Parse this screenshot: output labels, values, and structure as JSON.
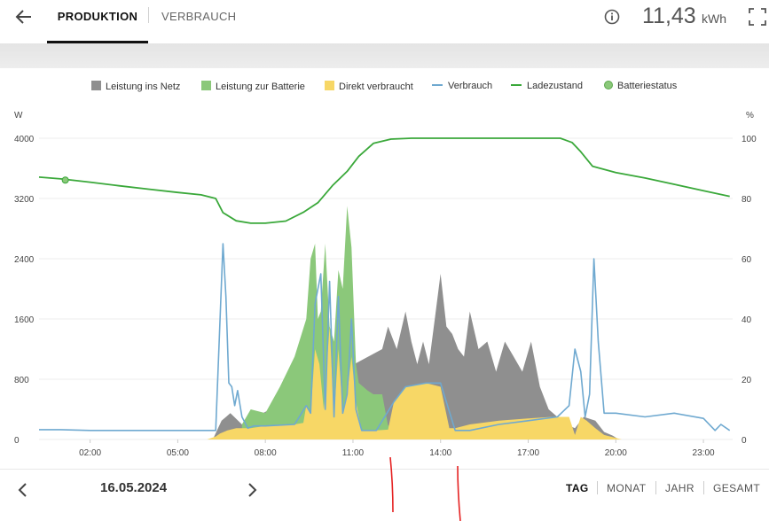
{
  "header": {
    "tabs": [
      {
        "label": "PRODUKTION",
        "active": true
      },
      {
        "label": "VERBRAUCH",
        "active": false
      }
    ],
    "energy_value": "11,43",
    "energy_unit": "kWh",
    "icons": {
      "back": "arrow-left-icon",
      "info": "info-icon",
      "fullscreen": "fullscreen-icon"
    }
  },
  "legend": [
    {
      "label": "Leistung ins Netz",
      "color": "#8f8f8f",
      "kind": "area"
    },
    {
      "label": "Leistung zur Batterie",
      "color": "#8bc87a",
      "kind": "area"
    },
    {
      "label": "Direkt verbraucht",
      "color": "#f7d766",
      "kind": "area"
    },
    {
      "label": "Verbrauch",
      "color": "#6fa9d0",
      "kind": "line"
    },
    {
      "label": "Ladezustand",
      "color": "#3aa83a",
      "kind": "line"
    },
    {
      "label": "Batteriestatus",
      "color": "#8bc87a",
      "kind": "dot"
    }
  ],
  "chart_data": {
    "type": "area",
    "left_axis_label": "W",
    "right_axis_label": "%",
    "left_ticks": [
      "4000",
      "3200",
      "2400",
      "1600",
      "800",
      "0"
    ],
    "right_ticks": [
      "100",
      "80",
      "60",
      "40",
      "20",
      "0"
    ],
    "ylim_left": [
      0,
      4000
    ],
    "ylim_right": [
      0,
      100
    ],
    "x_tick_labels": [
      "02:00",
      "05:00",
      "08:00",
      "11:00",
      "14:00",
      "17:00",
      "20:00",
      "23:00"
    ],
    "xlim_hours": [
      0.25,
      24
    ],
    "grid": true,
    "legend_position": "top-center",
    "series": [
      {
        "name": "Ladezustand",
        "axis": "right",
        "color": "#3aa83a",
        "x": [
          0.25,
          1.0,
          2.0,
          3.0,
          4.0,
          5.0,
          5.8,
          6.3,
          6.55,
          7.0,
          7.5,
          8.0,
          8.7,
          9.3,
          9.8,
          10.3,
          10.8,
          11.2,
          11.7,
          12.3,
          13.0,
          14.0,
          16.0,
          17.0,
          18.1,
          18.5,
          18.8,
          19.2,
          20.0,
          21.0,
          22.0,
          23.0,
          23.9
        ],
        "values": [
          87.1,
          86.5,
          85.4,
          84.2,
          83.1,
          82.0,
          81.2,
          80.0,
          75.3,
          72.6,
          71.8,
          71.8,
          72.5,
          75.4,
          78.6,
          84.3,
          89.0,
          94.0,
          98.3,
          99.7,
          100,
          100,
          100,
          100,
          100,
          98.6,
          95.5,
          90.7,
          88.6,
          86.8,
          84.7,
          82.6,
          80.7
        ]
      },
      {
        "name": "Batteriestatus",
        "axis": "right",
        "color": "#8bc87a",
        "x": [
          1.15
        ],
        "values": [
          86.1
        ]
      },
      {
        "name": "Verbrauch",
        "axis": "left",
        "color": "#6fa9d0",
        "x": [
          0.25,
          0.6,
          1.0,
          2.0,
          3.0,
          4.0,
          5.0,
          5.5,
          6.0,
          6.3,
          6.45,
          6.55,
          6.65,
          6.75,
          6.85,
          6.95,
          7.05,
          7.2,
          7.4,
          7.6,
          8.0,
          9.0,
          9.4,
          9.55,
          9.7,
          9.9,
          10.05,
          10.2,
          10.35,
          10.5,
          10.65,
          10.8,
          10.95,
          11.1,
          11.3,
          11.8,
          12.4,
          12.8,
          13.5,
          14.0,
          14.5,
          15.0,
          16.0,
          17.0,
          18.0,
          18.4,
          18.6,
          18.8,
          18.95,
          19.1,
          19.25,
          19.4,
          19.6,
          20.0,
          21.0,
          22.0,
          23.0,
          23.4,
          23.6,
          23.9
        ],
        "values": [
          130,
          130,
          130,
          120,
          120,
          120,
          120,
          120,
          120,
          120,
          1600,
          2600,
          1900,
          750,
          700,
          450,
          650,
          300,
          150,
          180,
          180,
          200,
          450,
          350,
          1800,
          2200,
          400,
          2100,
          300,
          1900,
          350,
          600,
          1600,
          400,
          120,
          120,
          500,
          700,
          750,
          750,
          120,
          120,
          200,
          250,
          300,
          450,
          1200,
          900,
          300,
          600,
          2400,
          1300,
          350,
          350,
          300,
          350,
          280,
          120,
          200,
          120
        ]
      },
      {
        "name": "Direkt verbraucht",
        "axis": "left",
        "color": "#f7d766",
        "x": [
          6.0,
          6.3,
          6.45,
          6.7,
          7.0,
          7.5,
          8.0,
          9.0,
          9.3,
          9.4,
          9.55,
          9.7,
          9.85,
          10.0,
          10.2,
          10.35,
          10.5,
          10.65,
          10.8,
          10.95,
          11.1,
          11.3,
          11.8,
          12.2,
          12.4,
          12.8,
          13.5,
          14.0,
          14.3,
          14.5,
          15.0,
          16.0,
          17.0,
          17.8,
          18.4,
          18.6,
          18.8,
          19.0,
          19.3,
          19.6,
          20.0,
          20.2
        ],
        "values": [
          0,
          40,
          80,
          120,
          150,
          150,
          180,
          200,
          220,
          450,
          350,
          1200,
          1000,
          400,
          1500,
          300,
          1200,
          350,
          600,
          1100,
          500,
          120,
          120,
          130,
          500,
          700,
          750,
          700,
          150,
          150,
          200,
          250,
          280,
          300,
          300,
          60,
          300,
          250,
          150,
          60,
          20,
          0
        ]
      },
      {
        "name": "Leistung zur Batterie",
        "axis": "left",
        "color": "#8bc87a",
        "x": [
          7.2,
          7.5,
          8.0,
          8.5,
          9.0,
          9.4,
          9.55,
          9.7,
          9.8,
          9.9,
          10.05,
          10.2,
          10.35,
          10.5,
          10.65,
          10.8,
          10.95,
          11.1,
          11.2,
          11.35,
          11.5,
          11.7,
          12.0,
          12.2,
          13.5,
          14.0
        ],
        "values": [
          200,
          400,
          350,
          700,
          1100,
          1600,
          2400,
          2600,
          1600,
          1700,
          2600,
          1500,
          1300,
          2250,
          2000,
          3100,
          2550,
          1000,
          750,
          700,
          650,
          600,
          600,
          180,
          700,
          0
        ]
      },
      {
        "name": "Leistung ins Netz",
        "axis": "left",
        "color": "#8f8f8f",
        "x": [
          6.2,
          6.5,
          6.8,
          7.2,
          12.0,
          12.2,
          12.5,
          12.8,
          13.0,
          13.2,
          13.4,
          13.6,
          13.8,
          14.0,
          14.2,
          14.4,
          14.6,
          14.8,
          15.0,
          15.3,
          15.6,
          15.9,
          16.2,
          16.5,
          16.8,
          17.1,
          17.4,
          17.7,
          18.0,
          18.3,
          18.6,
          18.9,
          19.3,
          19.6,
          19.9,
          20.1
        ],
        "values": [
          0,
          250,
          350,
          200,
          1200,
          1500,
          1200,
          1700,
          1300,
          1000,
          1300,
          1000,
          1600,
          2200,
          1500,
          1400,
          1200,
          1100,
          1700,
          1200,
          1300,
          900,
          1300,
          1100,
          900,
          1300,
          700,
          400,
          300,
          200,
          150,
          300,
          250,
          100,
          50,
          0
        ]
      }
    ]
  },
  "bottom": {
    "date": "16.05.2024",
    "ranges": [
      {
        "label": "TAG",
        "active": true
      },
      {
        "label": "MONAT",
        "active": false
      },
      {
        "label": "JAHR",
        "active": false
      },
      {
        "label": "GESAMT",
        "active": false
      }
    ],
    "icons": {
      "prev": "chevron-left-icon",
      "next": "chevron-right-icon"
    }
  }
}
